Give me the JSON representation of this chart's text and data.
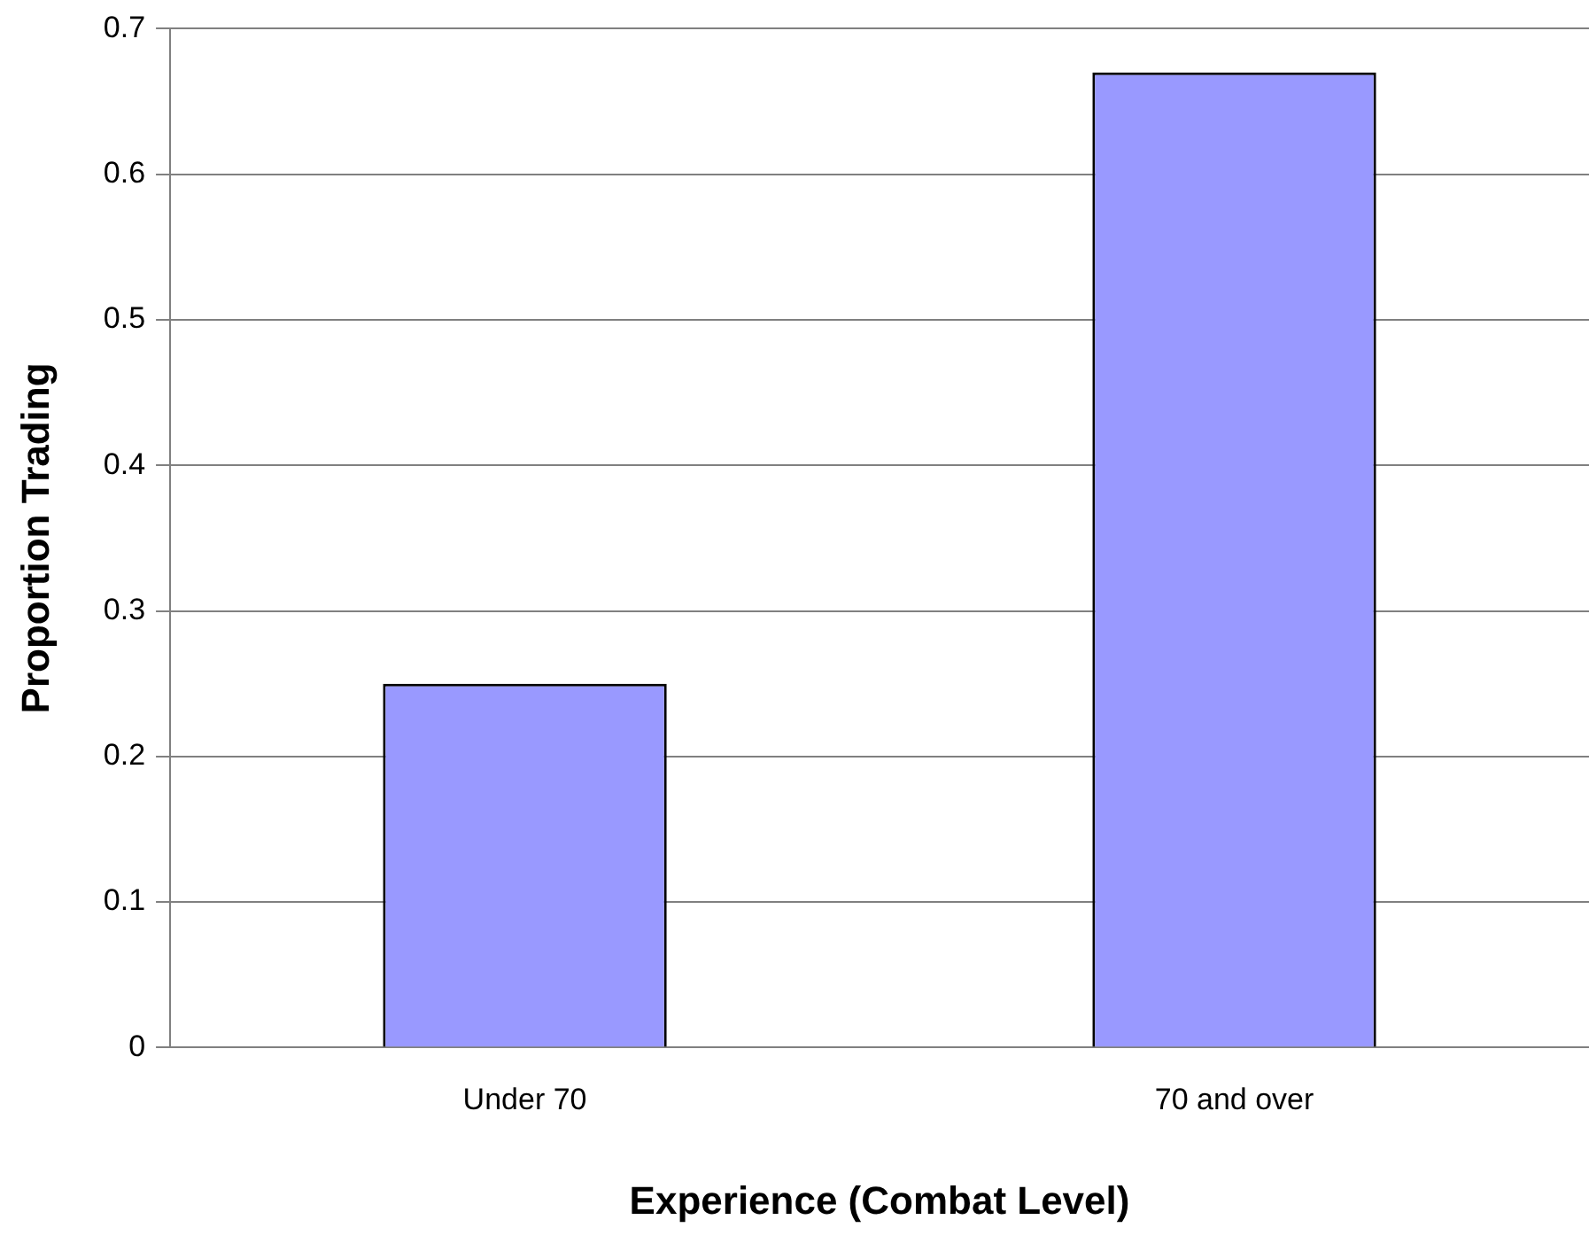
{
  "chart_data": {
    "type": "bar",
    "xlabel": "Experience (Combat Level)",
    "ylabel": "Proportion Trading",
    "categories": [
      "Under 70",
      "70 and over"
    ],
    "values": [
      0.25,
      0.67
    ],
    "color": "#9999ff",
    "ylim": [
      0,
      0.7
    ],
    "yticks": [
      0,
      0.1,
      0.2,
      0.3,
      0.4,
      0.5,
      0.6,
      0.7
    ],
    "grid": "y",
    "legend": false
  }
}
